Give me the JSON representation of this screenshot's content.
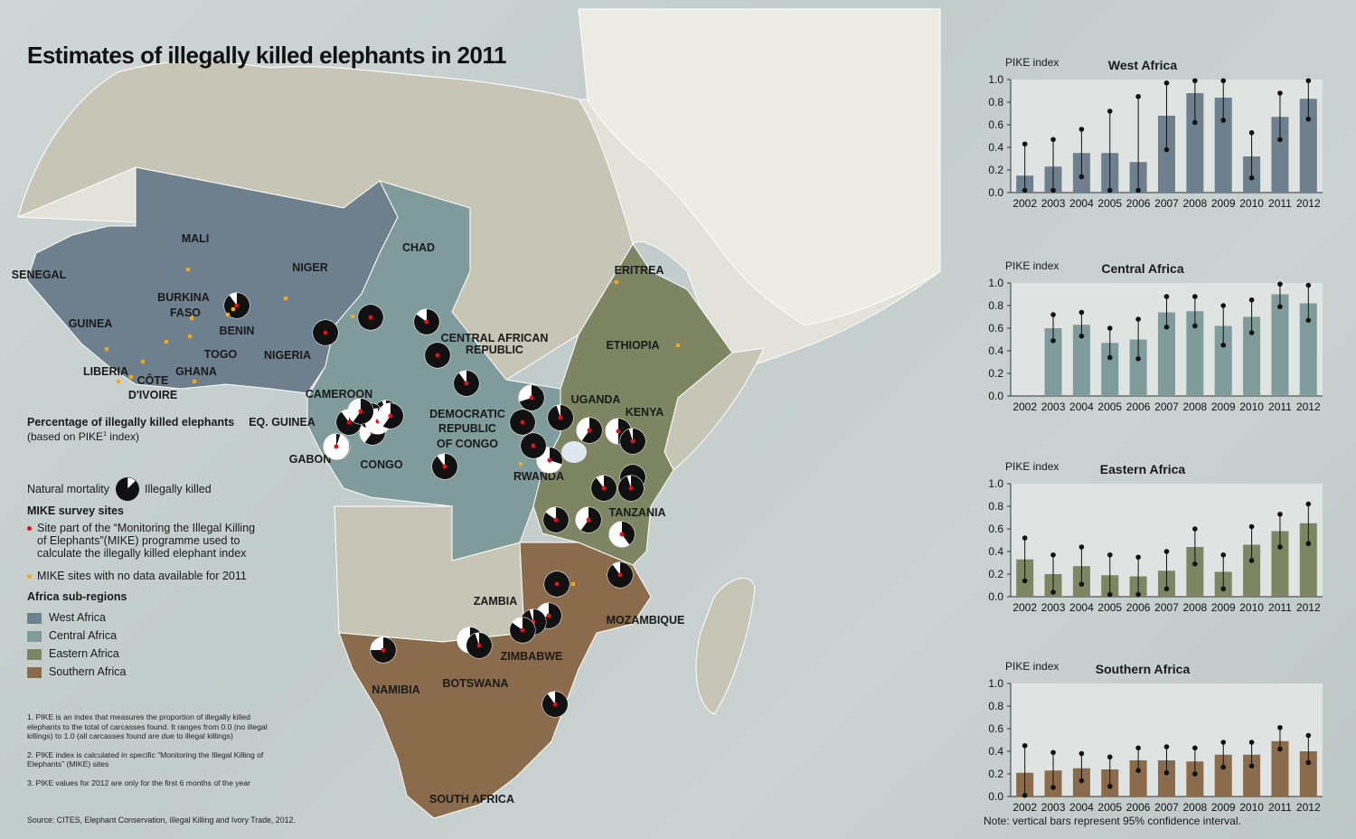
{
  "title": "Estimates of illegally killed elephants in 2011",
  "colors": {
    "west": "#6e7f8e",
    "central": "#7f9b9b",
    "eastern": "#7e8562",
    "southern": "#8a6b4b",
    "other_land": "#c7c5b5",
    "north_land": "#e3e2da",
    "sea": "#c6cfce",
    "mike_site": "#e0131b",
    "mike_nodata": "#f0a81c"
  },
  "countries": [
    {
      "label": "MALI"
    },
    {
      "label": "NIGER"
    },
    {
      "label": "CHAD"
    },
    {
      "label": "SENEGAL"
    },
    {
      "label": "BURKINA"
    },
    {
      "label": "FASO"
    },
    {
      "label": "GUINEA"
    },
    {
      "label": "BENIN"
    },
    {
      "label": "TOGO"
    },
    {
      "label": "NIGERIA"
    },
    {
      "label": "LIBERIA"
    },
    {
      "label": "GHANA"
    },
    {
      "label": "CÔTE"
    },
    {
      "label": "D'IVOIRE"
    },
    {
      "label": "CAMEROON"
    },
    {
      "label": "EQ. GUINEA"
    },
    {
      "label": "GABON"
    },
    {
      "label": "CONGO"
    },
    {
      "label": "CENTRAL AFRICAN"
    },
    {
      "label": "REPUBLIC"
    },
    {
      "label": "DEMOCRATIC"
    },
    {
      "label": "REPUBLIC"
    },
    {
      "label": "OF CONGO"
    },
    {
      "label": "ERITREA"
    },
    {
      "label": "ETHIOPIA"
    },
    {
      "label": "UGANDA"
    },
    {
      "label": "KENYA"
    },
    {
      "label": "RWANDA"
    },
    {
      "label": "TANZANIA"
    },
    {
      "label": "ZAMBIA"
    },
    {
      "label": "MOZAMBIQUE"
    },
    {
      "label": "ZIMBABWE"
    },
    {
      "label": "NAMIBIA"
    },
    {
      "label": "BOTSWANA"
    },
    {
      "label": "SOUTH AFRICA"
    }
  ],
  "legend": {
    "heading": "Percentage of illegally killed elephants",
    "subheading_pre": "(based on PIKE",
    "subheading_sup": "1",
    "subheading_post": " index)",
    "natural_mortality": "Natural mortality",
    "illegally_killed": "Illegally killed",
    "mike_heading": "MIKE survey sites",
    "mike_site_line1": "Site part of the “Monitoring the Illegal Killing",
    "mike_site_line2": "of Elephants”(MIKE)  programme used to",
    "mike_site_line3": "calculate the illegally killed elephant index",
    "mike_nodata": "MIKE sites with no data available for 2011",
    "regions_heading": "Africa sub-regions",
    "regions": [
      "West Africa",
      "Central Africa",
      "Eastern Africa",
      "Southern Africa"
    ]
  },
  "notes": {
    "n1": "1. PIKE is an index that measures the proportion of illegally killed elephants to the total of carcasses found. It ranges from 0.0 (no illegal killings) to 1.0 (all carcasses found are due to illegal killings)",
    "n2": "2. PIKE index is calculated in specific “Monitoring the Illegal Killing of Elephants” (MIKE) sites",
    "n3": "3. PIKE values for 2012 are only for the first 6 months of the year"
  },
  "source": "Source: CITES, Elephant Conservation, Illegal Killing and Ivory Trade, 2012.",
  "ci_note": "Note: vertical bars represent 95% confidence interval.",
  "chart_data": [
    {
      "type": "bar",
      "title": "West Africa",
      "ylabel": "PIKE index",
      "categories": [
        "2002",
        "2003",
        "2004",
        "2005",
        "2006",
        "2007",
        "2008",
        "2009",
        "2010",
        "2011",
        "2012"
      ],
      "values": [
        0.15,
        0.23,
        0.35,
        0.35,
        0.27,
        0.68,
        0.88,
        0.84,
        0.32,
        0.67,
        0.83
      ],
      "ci_low": [
        0.02,
        0.02,
        0.14,
        0.02,
        0.02,
        0.38,
        0.62,
        0.64,
        0.13,
        0.47,
        0.65
      ],
      "ci_high": [
        0.43,
        0.47,
        0.56,
        0.72,
        0.85,
        0.97,
        0.99,
        0.99,
        0.53,
        0.88,
        0.99
      ],
      "ylim": [
        0,
        1
      ],
      "yticks": [
        "0.0",
        "0.2",
        "0.4",
        "0.6",
        "0.8",
        "1.0"
      ],
      "color": "#6e7f8e"
    },
    {
      "type": "bar",
      "title": "Central Africa",
      "ylabel": "PIKE index",
      "categories": [
        "2002",
        "2003",
        "2004",
        "2005",
        "2006",
        "2007",
        "2008",
        "2009",
        "2010",
        "2011",
        "2012"
      ],
      "values": [
        null,
        0.6,
        0.63,
        0.47,
        0.5,
        0.74,
        0.75,
        0.62,
        0.7,
        0.9,
        0.82
      ],
      "ci_low": [
        null,
        0.49,
        0.53,
        0.34,
        0.33,
        0.61,
        0.62,
        0.45,
        0.56,
        0.79,
        0.67
      ],
      "ci_high": [
        null,
        0.72,
        0.74,
        0.6,
        0.68,
        0.88,
        0.88,
        0.8,
        0.85,
        0.99,
        0.98
      ],
      "ylim": [
        0,
        1
      ],
      "yticks": [
        "0.0",
        "0.2",
        "0.4",
        "0.6",
        "0.8",
        "1.0"
      ],
      "color": "#7f9b9b"
    },
    {
      "type": "bar",
      "title": "Eastern Africa",
      "ylabel": "PIKE index",
      "categories": [
        "2002",
        "2003",
        "2004",
        "2005",
        "2006",
        "2007",
        "2008",
        "2009",
        "2010",
        "2011",
        "2012"
      ],
      "values": [
        0.33,
        0.2,
        0.27,
        0.19,
        0.18,
        0.23,
        0.44,
        0.22,
        0.46,
        0.58,
        0.65
      ],
      "ci_low": [
        0.14,
        0.04,
        0.11,
        0.02,
        0.02,
        0.07,
        0.29,
        0.07,
        0.32,
        0.44,
        0.47
      ],
      "ci_high": [
        0.52,
        0.37,
        0.44,
        0.37,
        0.35,
        0.4,
        0.6,
        0.37,
        0.62,
        0.73,
        0.82
      ],
      "ylim": [
        0,
        1
      ],
      "yticks": [
        "0.0",
        "0.2",
        "0.4",
        "0.6",
        "0.8",
        "1.0"
      ],
      "color": "#7e8562"
    },
    {
      "type": "bar",
      "title": "Southern Africa",
      "ylabel": "PIKE index",
      "categories": [
        "2002",
        "2003",
        "2004",
        "2005",
        "2006",
        "2007",
        "2008",
        "2009",
        "2010",
        "2011",
        "2012"
      ],
      "values": [
        0.21,
        0.23,
        0.25,
        0.24,
        0.32,
        0.32,
        0.31,
        0.37,
        0.37,
        0.49,
        0.4
      ],
      "ci_low": [
        0.01,
        0.08,
        0.14,
        0.09,
        0.23,
        0.21,
        0.2,
        0.26,
        0.27,
        0.42,
        0.3
      ],
      "ci_high": [
        0.45,
        0.39,
        0.38,
        0.35,
        0.43,
        0.44,
        0.43,
        0.48,
        0.48,
        0.61,
        0.54
      ],
      "ylim": [
        0,
        1
      ],
      "yticks": [
        "0.0",
        "0.2",
        "0.4",
        "0.6",
        "0.8",
        "1.0"
      ],
      "color": "#8a6b4b"
    }
  ],
  "mike_sites": [
    {
      "killed": 0.9
    },
    {
      "killed": 1.0
    },
    {
      "killed": 1.0
    },
    {
      "killed": 0.85
    },
    {
      "killed": 1.0
    },
    {
      "killed": 0.9
    },
    {
      "killed": 0.7
    },
    {
      "killed": 0.95
    },
    {
      "killed": 0.6
    },
    {
      "killed": 0.5
    },
    {
      "killed": 0.95
    },
    {
      "killed": 1.0
    },
    {
      "killed": 0.3
    },
    {
      "killed": 1.0
    },
    {
      "killed": 1.0
    },
    {
      "killed": 0.95
    },
    {
      "killed": 0.9
    },
    {
      "killed": 0.85
    },
    {
      "killed": 0.6
    },
    {
      "killed": 0.4
    },
    {
      "killed": 0.9
    },
    {
      "killed": 1.0
    },
    {
      "killed": 0.7
    },
    {
      "killed": 0.95
    },
    {
      "killed": 0.85
    },
    {
      "killed": 0.4
    },
    {
      "killed": 0.95
    },
    {
      "killed": 0.75
    },
    {
      "killed": 0.9
    },
    {
      "killed": 0.9
    },
    {
      "killed": 0.6
    },
    {
      "killed": 0.95
    },
    {
      "killed": 0.85
    },
    {
      "killed": 0.8
    },
    {
      "killed": 0.9
    },
    {
      "killed": 0.3
    },
    {
      "killed": 0.6
    },
    {
      "killed": 0.6
    },
    {
      "killed": 0.05
    }
  ]
}
